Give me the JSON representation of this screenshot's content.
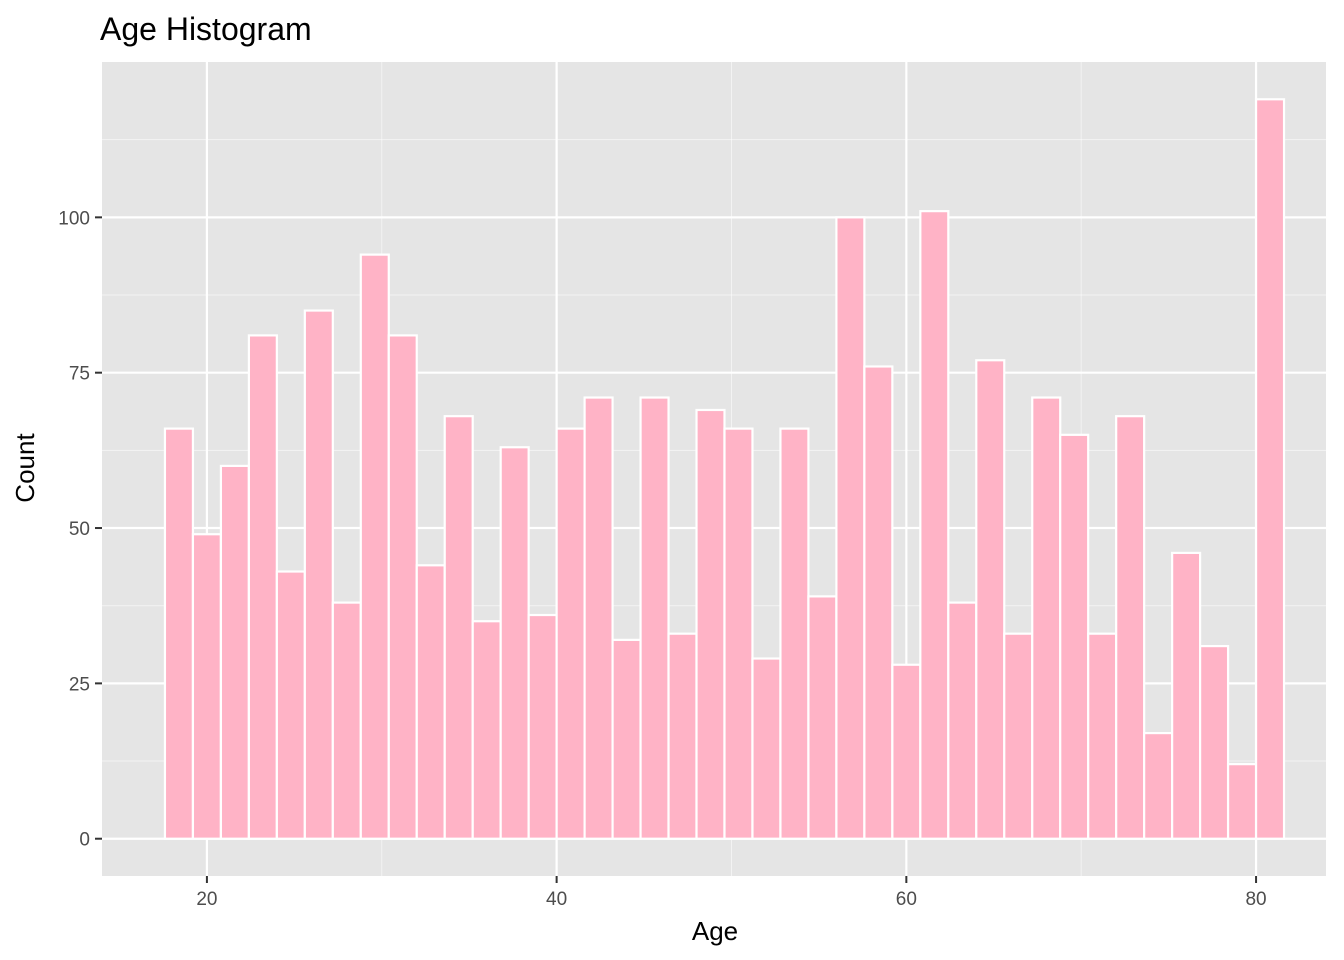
{
  "chart_data": {
    "type": "bar",
    "title": "Age Histogram",
    "xlabel": "Age",
    "ylabel": "Count",
    "xlim": [
      14,
      84
    ],
    "ylim": [
      -6,
      125
    ],
    "x_ticks": [
      20,
      40,
      60,
      80
    ],
    "y_ticks": [
      0,
      25,
      50,
      75,
      100
    ],
    "bin_width": 1.6,
    "bin_centers": [
      18.4,
      20.0,
      21.6,
      23.2,
      24.8,
      26.4,
      28.0,
      29.6,
      31.2,
      32.8,
      34.4,
      36.0,
      37.6,
      39.2,
      40.8,
      42.4,
      44.0,
      45.6,
      47.2,
      48.8,
      50.4,
      52.0,
      53.6,
      55.2,
      56.8,
      58.4,
      60.0,
      61.6,
      63.2,
      64.8,
      66.4,
      68.0,
      69.6,
      71.2,
      72.8,
      74.4,
      76.0,
      77.6,
      79.2,
      80.8
    ],
    "values": [
      66,
      49,
      60,
      81,
      43,
      85,
      38,
      94,
      81,
      44,
      68,
      35,
      63,
      36,
      66,
      71,
      32,
      71,
      33,
      69,
      66,
      29,
      66,
      39,
      100,
      76,
      28,
      101,
      38,
      77,
      33,
      71,
      65,
      33,
      68,
      17,
      46,
      31,
      12,
      119
    ],
    "grid": true,
    "colors": {
      "bar_fill": "#FFB3C6",
      "bar_stroke": "#FFFFFF",
      "panel_bg": "#E5E5E5",
      "grid_major": "#FFFFFF"
    }
  }
}
